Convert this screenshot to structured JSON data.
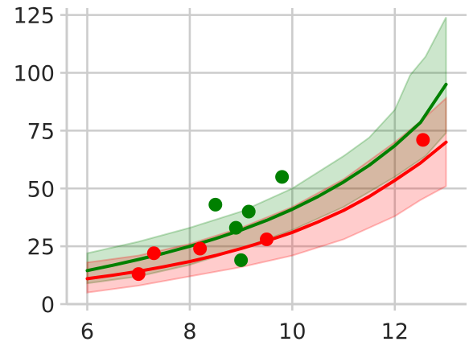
{
  "chart_data": {
    "type": "scatter",
    "title": "",
    "xlabel": "",
    "ylabel": "",
    "xlim": [
      5.6,
      13.4
    ],
    "ylim": [
      0,
      128
    ],
    "grid": true,
    "x_ticks": [
      6,
      8,
      10,
      12
    ],
    "y_ticks": [
      0,
      25,
      50,
      75,
      100,
      125
    ],
    "series": [
      {
        "color": "#008000",
        "band_color": "#008000",
        "band_opacity": 0.2,
        "points": [
          {
            "x": 8.5,
            "y": 43
          },
          {
            "x": 8.9,
            "y": 33
          },
          {
            "x": 9.0,
            "y": 19
          },
          {
            "x": 9.15,
            "y": 40
          },
          {
            "x": 9.8,
            "y": 55
          }
        ],
        "fit": [
          {
            "x": 6.0,
            "y": 14.5
          },
          {
            "x": 6.5,
            "y": 16.8
          },
          {
            "x": 7.0,
            "y": 19.3
          },
          {
            "x": 7.5,
            "y": 22.0
          },
          {
            "x": 8.0,
            "y": 25.0
          },
          {
            "x": 8.5,
            "y": 28.3
          },
          {
            "x": 9.0,
            "y": 32.0
          },
          {
            "x": 9.5,
            "y": 36.2
          },
          {
            "x": 10.0,
            "y": 41.0
          },
          {
            "x": 10.5,
            "y": 46.5
          },
          {
            "x": 11.0,
            "y": 52.8
          },
          {
            "x": 11.5,
            "y": 60.0
          },
          {
            "x": 12.0,
            "y": 68.5
          },
          {
            "x": 12.5,
            "y": 78.5
          },
          {
            "x": 13.0,
            "y": 95.0
          }
        ],
        "band_upper": [
          {
            "x": 6.0,
            "y": 22
          },
          {
            "x": 7.0,
            "y": 27
          },
          {
            "x": 8.0,
            "y": 33
          },
          {
            "x": 9.0,
            "y": 40
          },
          {
            "x": 10.0,
            "y": 50
          },
          {
            "x": 11.0,
            "y": 64
          },
          {
            "x": 11.5,
            "y": 72
          },
          {
            "x": 12.0,
            "y": 84
          },
          {
            "x": 12.3,
            "y": 99
          },
          {
            "x": 12.6,
            "y": 107
          },
          {
            "x": 13.0,
            "y": 124
          }
        ],
        "band_lower": [
          {
            "x": 6.0,
            "y": 9
          },
          {
            "x": 7.0,
            "y": 12
          },
          {
            "x": 8.0,
            "y": 17
          },
          {
            "x": 9.0,
            "y": 24
          },
          {
            "x": 10.0,
            "y": 32
          },
          {
            "x": 11.0,
            "y": 42
          },
          {
            "x": 12.0,
            "y": 55
          },
          {
            "x": 12.6,
            "y": 64
          },
          {
            "x": 13.0,
            "y": 74
          }
        ]
      },
      {
        "color": "#ff0000",
        "band_color": "#ff0000",
        "band_opacity": 0.2,
        "points": [
          {
            "x": 7.0,
            "y": 13
          },
          {
            "x": 7.3,
            "y": 22
          },
          {
            "x": 8.2,
            "y": 24
          },
          {
            "x": 9.5,
            "y": 28
          },
          {
            "x": 12.55,
            "y": 71
          }
        ],
        "fit": [
          {
            "x": 6.0,
            "y": 11.0
          },
          {
            "x": 6.5,
            "y": 12.5
          },
          {
            "x": 7.0,
            "y": 14.2
          },
          {
            "x": 7.5,
            "y": 16.2
          },
          {
            "x": 8.0,
            "y": 18.4
          },
          {
            "x": 8.5,
            "y": 21.0
          },
          {
            "x": 9.0,
            "y": 24.0
          },
          {
            "x": 9.5,
            "y": 27.3
          },
          {
            "x": 10.0,
            "y": 31.0
          },
          {
            "x": 10.5,
            "y": 35.5
          },
          {
            "x": 11.0,
            "y": 40.5
          },
          {
            "x": 11.5,
            "y": 46.5
          },
          {
            "x": 12.0,
            "y": 53.5
          },
          {
            "x": 12.5,
            "y": 61.0
          },
          {
            "x": 13.0,
            "y": 70.0
          }
        ],
        "band_upper": [
          {
            "x": 6.0,
            "y": 18
          },
          {
            "x": 7.0,
            "y": 21
          },
          {
            "x": 8.0,
            "y": 26
          },
          {
            "x": 9.0,
            "y": 33
          },
          {
            "x": 10.0,
            "y": 42
          },
          {
            "x": 11.0,
            "y": 54
          },
          {
            "x": 12.0,
            "y": 70
          },
          {
            "x": 12.5,
            "y": 79
          },
          {
            "x": 13.0,
            "y": 89
          }
        ],
        "band_lower": [
          {
            "x": 6.0,
            "y": 5
          },
          {
            "x": 7.0,
            "y": 8
          },
          {
            "x": 8.0,
            "y": 12
          },
          {
            "x": 9.0,
            "y": 16
          },
          {
            "x": 10.0,
            "y": 21
          },
          {
            "x": 11.0,
            "y": 28
          },
          {
            "x": 12.0,
            "y": 38
          },
          {
            "x": 12.5,
            "y": 45
          },
          {
            "x": 13.0,
            "y": 51
          }
        ]
      }
    ]
  }
}
